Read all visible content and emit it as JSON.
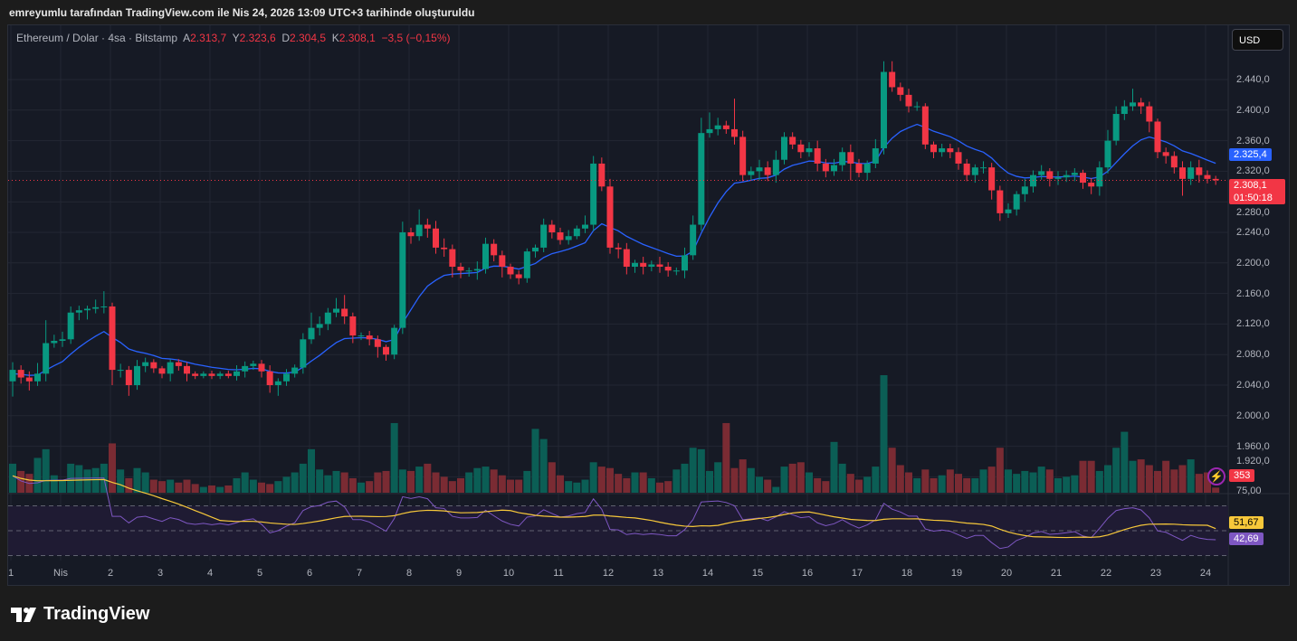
{
  "caption": "emreyumlu tarafından TradingView.com ile Nis 24, 2026 13:09 UTC+3 tarihinde oluşturuldu",
  "legend": {
    "symbol": "Ethereum / Dolar · 4sa · Bitstamp",
    "open_label": "A",
    "open": "2.313,7",
    "high_label": "Y",
    "high": "2.323,6",
    "low_label": "D",
    "low": "2.304,5",
    "close_label": "K",
    "close": "2.308,1",
    "change": "−3,5 (−0,15%)"
  },
  "currency_button": "USD",
  "tags": {
    "ma_value": "2.325,4",
    "last_price": "2.308,1",
    "countdown": "01:50:18",
    "volume": "353",
    "rsi_ma": "51,67",
    "rsi": "42,69"
  },
  "brand": "TradingView",
  "colors": {
    "up": "#089981",
    "down": "#f23645",
    "ma": "#2962ff",
    "rsi": "#7e57c2",
    "rsi_ma": "#f7c83a",
    "vol_up": "#0b5e55",
    "vol_down": "#7a2b33"
  },
  "chart_data": {
    "type": "candlestick",
    "title": "Ethereum / Dolar · 4sa · Bitstamp",
    "ylabel": "USD",
    "ylim": [
      1900,
      2470
    ],
    "price_ticks": [
      "2.440,0",
      "2.400,0",
      "2.360,0",
      "2.320,0",
      "2.280,0",
      "2.240,0",
      "2.200,0",
      "2.160,0",
      "2.120,0",
      "2.080,0",
      "2.040,0",
      "2.000,0",
      "1.960,0",
      "1.920,0"
    ],
    "price_tick_values": [
      2440,
      2400,
      2360,
      2320,
      2280,
      2240,
      2200,
      2160,
      2120,
      2080,
      2040,
      2000,
      1960,
      1920
    ],
    "x_ticks": [
      "1",
      "Nis",
      "2",
      "3",
      "4",
      "5",
      "6",
      "7",
      "8",
      "9",
      "10",
      "11",
      "12",
      "13",
      "14",
      "15",
      "16",
      "17",
      "18",
      "19",
      "20",
      "21",
      "22",
      "23",
      "24"
    ],
    "first_open": 2045,
    "close": [
      2060,
      2050,
      2045,
      2055,
      2095,
      2098,
      2100,
      2135,
      2138,
      2140,
      2142,
      2143,
      2060,
      2060,
      2040,
      2065,
      2070,
      2062,
      2055,
      2070,
      2065,
      2055,
      2052,
      2055,
      2052,
      2055,
      2052,
      2058,
      2065,
      2068,
      2058,
      2040,
      2045,
      2055,
      2063,
      2100,
      2115,
      2120,
      2135,
      2140,
      2130,
      2105,
      2105,
      2100,
      2090,
      2080,
      2115,
      2240,
      2235,
      2250,
      2245,
      2220,
      2218,
      2195,
      2190,
      2190,
      2192,
      2225,
      2210,
      2195,
      2185,
      2180,
      2215,
      2220,
      2250,
      2240,
      2230,
      2235,
      2245,
      2250,
      2330,
      2300,
      2220,
      2218,
      2195,
      2200,
      2195,
      2198,
      2195,
      2190,
      2190,
      2210,
      2250,
      2370,
      2375,
      2380,
      2375,
      2365,
      2315,
      2320,
      2325,
      2315,
      2335,
      2365,
      2355,
      2345,
      2350,
      2330,
      2320,
      2328,
      2345,
      2330,
      2318,
      2330,
      2350,
      2450,
      2430,
      2420,
      2405,
      2405,
      2355,
      2345,
      2350,
      2345,
      2330,
      2315,
      2325,
      2325,
      2295,
      2265,
      2270,
      2290,
      2300,
      2315,
      2320,
      2310,
      2312,
      2315,
      2318,
      2305,
      2300,
      2325,
      2360,
      2395,
      2405,
      2410,
      2405,
      2385,
      2345,
      2340,
      2325,
      2310,
      2325,
      2315,
      2310,
      2308.1
    ],
    "wick_up": [
      10,
      6,
      8,
      14,
      30,
      8,
      10,
      8,
      6,
      4,
      10,
      20,
      5,
      8,
      5,
      8,
      6,
      4,
      3,
      4,
      4,
      5,
      3,
      3,
      4,
      3,
      4,
      8,
      6,
      4,
      5,
      8,
      4,
      6,
      4,
      8,
      20,
      10,
      6,
      14,
      18,
      5,
      4,
      6,
      5,
      3,
      4,
      14,
      6,
      20,
      8,
      10,
      12,
      6,
      5,
      4,
      10,
      8,
      6,
      6,
      4,
      5,
      4,
      4,
      8,
      6,
      6,
      8,
      4,
      12,
      10,
      8,
      10,
      6,
      8,
      4,
      8,
      5,
      10,
      6,
      4,
      10,
      12,
      20,
      22,
      10,
      6,
      40,
      8,
      6,
      10,
      8,
      12,
      6,
      6,
      6,
      8,
      10,
      6,
      8,
      6,
      10,
      6,
      4,
      12,
      14,
      14,
      6,
      8,
      6,
      4,
      4,
      6,
      6,
      6,
      6,
      4,
      8,
      6,
      6,
      8,
      4,
      10,
      6,
      8,
      4,
      8,
      6,
      6,
      4,
      6,
      8,
      14,
      10,
      8,
      18,
      6,
      6,
      4,
      6,
      6,
      8,
      8,
      10,
      6,
      4,
      12
    ],
    "wick_down": [
      20,
      8,
      12,
      6,
      10,
      6,
      8,
      6,
      10,
      12,
      6,
      8,
      20,
      10,
      14,
      6,
      8,
      6,
      6,
      10,
      6,
      10,
      4,
      3,
      4,
      4,
      3,
      6,
      8,
      5,
      8,
      10,
      14,
      6,
      5,
      8,
      6,
      10,
      8,
      6,
      10,
      10,
      6,
      8,
      14,
      8,
      6,
      8,
      10,
      6,
      12,
      8,
      10,
      14,
      10,
      8,
      12,
      6,
      8,
      14,
      6,
      8,
      6,
      8,
      6,
      8,
      6,
      6,
      4,
      6,
      8,
      6,
      8,
      12,
      10,
      8,
      10,
      6,
      8,
      8,
      6,
      10,
      6,
      8,
      6,
      8,
      6,
      10,
      8,
      6,
      12,
      8,
      10,
      6,
      6,
      8,
      6,
      10,
      8,
      6,
      8,
      22,
      6,
      10,
      6,
      8,
      6,
      8,
      8,
      6,
      6,
      8,
      6,
      8,
      8,
      8,
      10,
      8,
      12,
      10,
      6,
      8,
      10,
      8,
      6,
      10,
      8,
      6,
      8,
      8,
      10,
      12,
      8,
      6,
      8,
      6,
      10,
      14,
      8,
      10,
      8,
      22,
      8,
      10,
      6,
      6
    ],
    "volume": [
      2000,
      1500,
      1300,
      2400,
      3000,
      1200,
      900,
      2000,
      1900,
      1600,
      1700,
      2000,
      3400,
      1600,
      1000,
      1700,
      1400,
      900,
      800,
      900,
      700,
      900,
      600,
      400,
      500,
      400,
      500,
      1000,
      1400,
      900,
      700,
      600,
      800,
      1100,
      1400,
      2000,
      3000,
      1600,
      1200,
      1500,
      1400,
      1000,
      700,
      800,
      1400,
      1500,
      4800,
      1600,
      1500,
      1800,
      2000,
      1400,
      1100,
      800,
      1000,
      1400,
      1700,
      1800,
      1600,
      1200,
      900,
      900,
      1500,
      4400,
      3700,
      2100,
      1200,
      800,
      700,
      900,
      2100,
      1800,
      1700,
      1300,
      1000,
      1400,
      1400,
      1000,
      700,
      800,
      1600,
      2000,
      3100,
      3000,
      1500,
      2100,
      4800,
      1700,
      2300,
      1700,
      1100,
      900,
      400,
      1800,
      2000,
      2100,
      1400,
      1000,
      800,
      3500,
      2000,
      1300,
      900,
      1100,
      1800,
      8100,
      3100,
      1900,
      1400,
      1000,
      1600,
      1000,
      1200,
      1600,
      1300,
      1000,
      1000,
      1600,
      1800,
      3100,
      1600,
      1300,
      1500,
      1400,
      1800,
      1600,
      1000,
      1100,
      1200,
      2200,
      2200,
      1500,
      1900,
      3100,
      4200,
      2200,
      2300,
      1900,
      1500,
      2200,
      1600,
      1900,
      2300,
      1300,
      1400,
      353
    ],
    "rsi_ticks": [
      "75,00"
    ],
    "rsi_last": 42.69,
    "rsi_ma_last": 51.67
  }
}
